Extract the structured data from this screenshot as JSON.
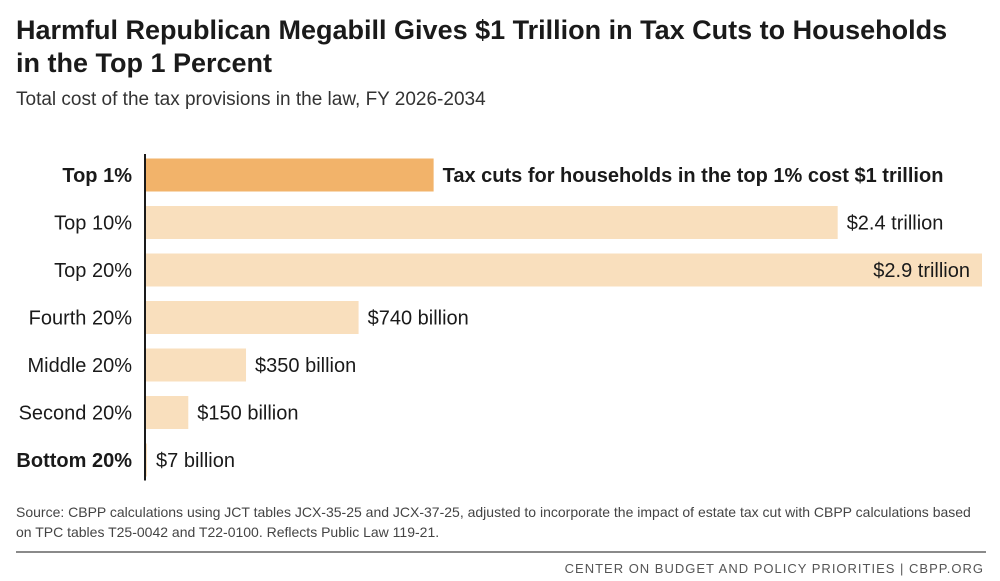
{
  "title": "Harmful Republican Megabill Gives $1 Trillion in Tax Cuts to Households in the Top 1 Percent",
  "subtitle": "Total cost of the tax provisions in the law, FY 2026-2034",
  "source": "Source: CBPP calculations using JCT tables JCX-35-25 and JCX-37-25, adjusted to incorporate the impact of estate tax cut with CBPP calculations based on TPC tables T25-0042 and T22-0100. Reflects Public Law 119-21.",
  "footer": "CENTER ON BUDGET AND POLICY PRIORITIES | CBPP.ORG",
  "colors": {
    "highlight": "#f2b36a",
    "bar": "#f9dfbd",
    "axis": "#1a1a1a",
    "text": "#1a1a1a"
  },
  "chart_data": {
    "type": "bar",
    "orientation": "horizontal",
    "title": "Harmful Republican Megabill Gives $1 Trillion in Tax Cuts to Households in the Top 1 Percent",
    "subtitle": "Total cost of the tax provisions in the law, FY 2026-2034",
    "xlabel": "",
    "ylabel": "",
    "units": "billions of dollars",
    "xlim": [
      0,
      2900
    ],
    "grid": false,
    "legend": "none",
    "categories": [
      "Top 1%",
      "Top 10%",
      "Top 20%",
      "Fourth 20%",
      "Middle 20%",
      "Second 20%",
      "Bottom 20%"
    ],
    "values": [
      1000,
      2400,
      2900,
      740,
      350,
      150,
      7
    ],
    "data_labels": [
      "Tax cuts for households in the top 1% cost $1 trillion",
      "$2.4 trillion",
      "$2.9 trillion",
      "$740 billion",
      "$350 billion",
      "$150 billion",
      "$7 billion"
    ],
    "highlighted": [
      true,
      false,
      false,
      false,
      false,
      false,
      false
    ],
    "bold_category": [
      true,
      false,
      false,
      false,
      false,
      false,
      true
    ],
    "label_inside": [
      false,
      false,
      true,
      false,
      false,
      false,
      false
    ]
  }
}
